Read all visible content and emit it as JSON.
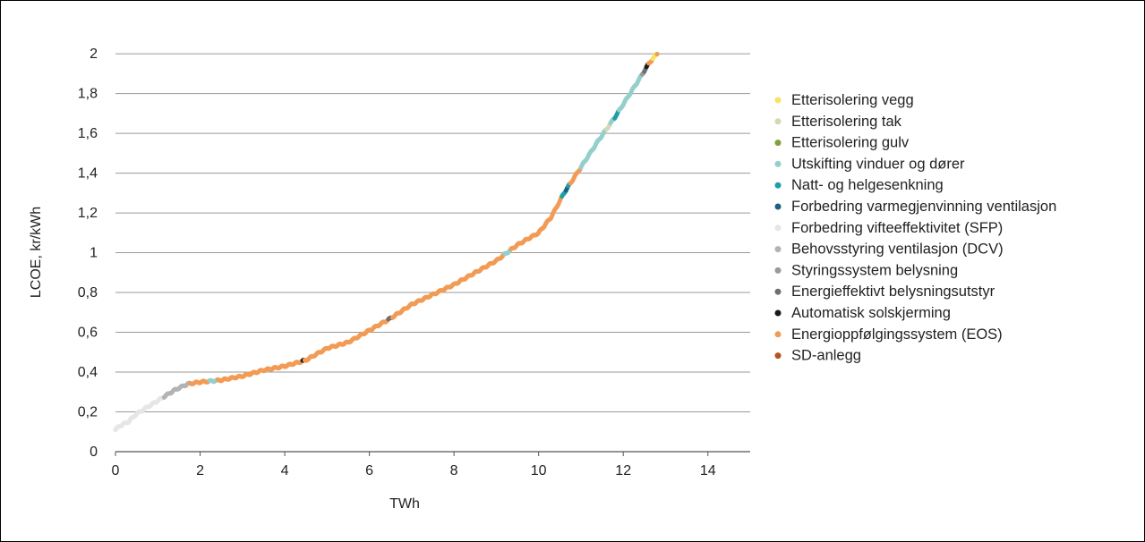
{
  "chart_data": {
    "type": "scatter",
    "title": "",
    "xlabel": "TWh",
    "ylabel": "LCOE, kr/kWh",
    "xlim": [
      0,
      15
    ],
    "ylim": [
      0,
      2.05
    ],
    "x_ticks": [
      0,
      2,
      4,
      6,
      8,
      10,
      12,
      14
    ],
    "x_tick_labels": [
      "0",
      "2",
      "4",
      "6",
      "8",
      "10",
      "12",
      "14"
    ],
    "y_ticks": [
      0,
      0.2,
      0.4,
      0.6,
      0.8,
      1,
      1.2,
      1.4,
      1.6,
      1.8,
      2
    ],
    "y_tick_labels": [
      "0",
      "0,2",
      "0,4",
      "0,6",
      "0,8",
      "1",
      "1,2",
      "1,4",
      "1,6",
      "1,8",
      "2"
    ],
    "grid": "horizontal",
    "legend_position": "right",
    "curve": [
      [
        0.0,
        0.11
      ],
      [
        0.1,
        0.13
      ],
      [
        0.3,
        0.15
      ],
      [
        0.5,
        0.19
      ],
      [
        0.8,
        0.23
      ],
      [
        1.1,
        0.27
      ],
      [
        1.4,
        0.31
      ],
      [
        1.7,
        0.34
      ],
      [
        2.0,
        0.35
      ],
      [
        2.5,
        0.36
      ],
      [
        3.0,
        0.38
      ],
      [
        3.5,
        0.41
      ],
      [
        4.0,
        0.43
      ],
      [
        4.5,
        0.46
      ],
      [
        5.0,
        0.52
      ],
      [
        5.5,
        0.55
      ],
      [
        6.0,
        0.61
      ],
      [
        6.5,
        0.67
      ],
      [
        7.0,
        0.74
      ],
      [
        7.5,
        0.79
      ],
      [
        8.0,
        0.84
      ],
      [
        8.5,
        0.9
      ],
      [
        9.0,
        0.96
      ],
      [
        9.5,
        1.04
      ],
      [
        10.0,
        1.1
      ],
      [
        10.3,
        1.18
      ],
      [
        10.6,
        1.3
      ],
      [
        11.0,
        1.43
      ],
      [
        11.4,
        1.56
      ],
      [
        11.8,
        1.68
      ],
      [
        12.1,
        1.78
      ],
      [
        12.4,
        1.88
      ],
      [
        12.6,
        1.95
      ],
      [
        12.8,
        2.0
      ]
    ],
    "series": [
      {
        "name": "Etterisolering vegg",
        "color": "#f7e463",
        "ranges": [
          [
            12.7,
            12.8
          ]
        ]
      },
      {
        "name": "Etterisolering tak",
        "color": "#d6d8b4",
        "ranges": [
          [
            11.6,
            11.7
          ]
        ]
      },
      {
        "name": "Etterisolering gulv",
        "color": "#7fa23c",
        "ranges": []
      },
      {
        "name": "Utskifting vinduer og dører",
        "color": "#93cfcb",
        "ranges": [
          [
            2.2,
            2.4
          ],
          [
            9.2,
            9.35
          ],
          [
            11.0,
            12.6
          ]
        ]
      },
      {
        "name": "Natt- og helgesenkning",
        "color": "#1f9ea8",
        "ranges": [
          [
            10.55,
            10.75
          ],
          [
            11.8,
            11.9
          ]
        ]
      },
      {
        "name": "Forbedring varmegjenvinning ventilasjon",
        "color": "#1b6281",
        "ranges": [
          [
            10.65,
            10.7
          ]
        ]
      },
      {
        "name": "Forbedring vifteeffektivitet (SFP)",
        "color": "#e6e6e6",
        "ranges": [
          [
            0.0,
            1.15
          ]
        ]
      },
      {
        "name": "Behovsstyring ventilasjon (DCV)",
        "color": "#b3b3b3",
        "ranges": [
          [
            1.15,
            1.75
          ]
        ]
      },
      {
        "name": "Styringssystem belysning",
        "color": "#9a9a9a",
        "ranges": [
          [
            12.45,
            12.6
          ]
        ]
      },
      {
        "name": "Energieffektivt belysningsutstyr",
        "color": "#6f6f6f",
        "ranges": [
          [
            6.45,
            6.55
          ],
          [
            12.5,
            12.6
          ]
        ]
      },
      {
        "name": "Automatisk solskjerming",
        "color": "#1a1a1a",
        "ranges": [
          [
            4.42,
            4.45
          ],
          [
            12.55,
            12.6
          ]
        ]
      },
      {
        "name": "Energioppfølgingssystem (EOS)",
        "color": "#f29b55",
        "ranges": [
          [
            1.75,
            11.0
          ]
        ]
      },
      {
        "name": "SD-anlegg",
        "color": "#b5541f",
        "ranges": []
      }
    ]
  }
}
